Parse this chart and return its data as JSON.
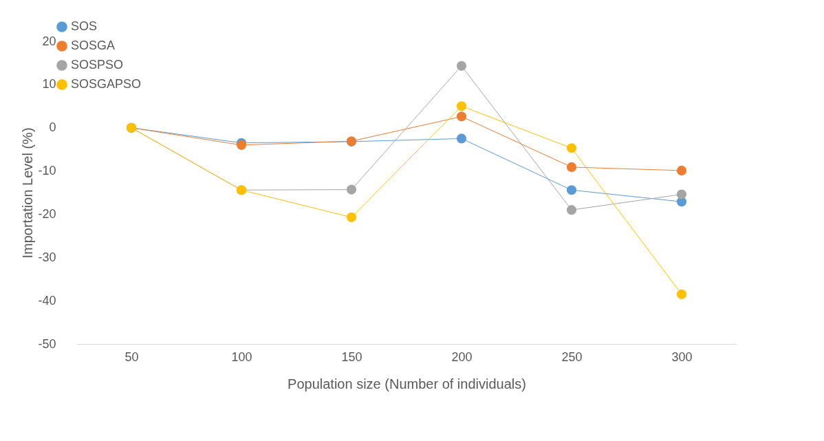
{
  "chart_data": {
    "type": "line",
    "xlabel": "Population size (Number of individuals)",
    "ylabel": "Importation Level  (%)",
    "categories": [
      "50",
      "100",
      "150",
      "200",
      "250",
      "300"
    ],
    "series": [
      {
        "name": "SOS",
        "color": "#5b9bd5",
        "values": [
          0,
          -3.5,
          -3.2,
          -2.5,
          -14.4,
          -17.1
        ]
      },
      {
        "name": "SOSGA",
        "color": "#ed7d31",
        "values": [
          0,
          -4.0,
          -3.1,
          2.6,
          -9.1,
          -9.9
        ]
      },
      {
        "name": "SOSPSO",
        "color": "#a5a5a5",
        "values": [
          0,
          -14.4,
          -14.3,
          14.3,
          -19.0,
          -15.4
        ]
      },
      {
        "name": "SOSGAPSO",
        "color": "#ffc000",
        "values": [
          0,
          -14.4,
          -20.7,
          5.0,
          -4.7,
          -38.5
        ]
      }
    ],
    "ylim": [
      -50,
      20
    ],
    "yticks": [
      -50,
      -40,
      -30,
      -20,
      -10,
      0,
      10,
      20
    ],
    "grid": false,
    "legend": "top left",
    "marker": "circle",
    "line_style": "solid"
  }
}
